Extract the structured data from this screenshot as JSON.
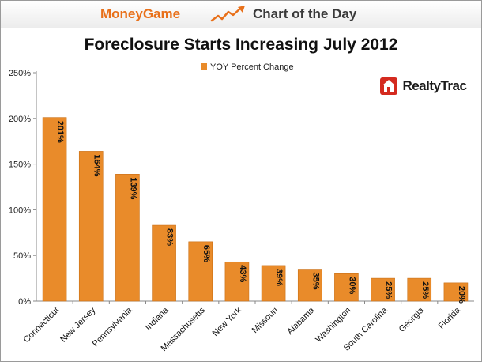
{
  "banner": {
    "left_text": "MoneyGame",
    "right_text": "Chart of the Day",
    "icon": "rising-trend-arrow-icon"
  },
  "logo": {
    "text": "RealtyTrac",
    "icon": "house-icon",
    "color": "#d42a1f"
  },
  "colors": {
    "bar": "#e98b2a",
    "bar_edge": "#c96f16",
    "accent": "#e8701a"
  },
  "chart_data": {
    "type": "bar",
    "title": "Foreclosure Starts Increasing July 2012",
    "xlabel": "",
    "ylabel": "",
    "ylim": [
      0,
      250
    ],
    "yticks": [
      "0%",
      "50%",
      "100%",
      "150%",
      "200%",
      "250%"
    ],
    "ytick_values": [
      0,
      50,
      100,
      150,
      200,
      250
    ],
    "grid": false,
    "legend_position": "top-center",
    "categories": [
      "Connecticut",
      "New Jersey",
      "Pennsylvania",
      "Indiana",
      "Massachusetts",
      "New York",
      "Missouri",
      "Alabama",
      "Washington",
      "South Carolina",
      "Georgia",
      "Florida"
    ],
    "series": [
      {
        "name": "YOY  Percent Change",
        "values": [
          201,
          164,
          139,
          83,
          65,
          43,
          39,
          35,
          30,
          25,
          25,
          20
        ],
        "labels": [
          "201%",
          "164%",
          "139%",
          "83%",
          "65%",
          "43%",
          "39%",
          "35%",
          "30%",
          "25%",
          "25%",
          "20%"
        ]
      }
    ]
  }
}
